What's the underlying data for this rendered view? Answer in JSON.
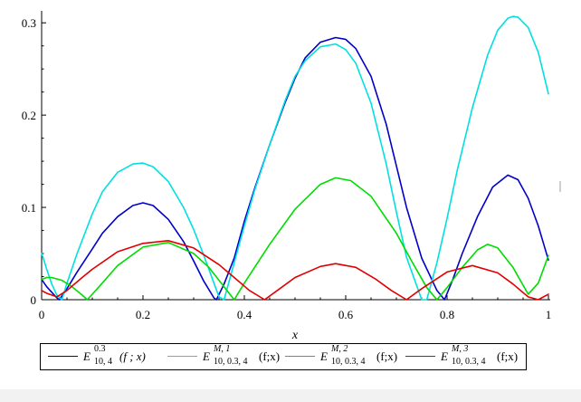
{
  "chart_data": {
    "type": "line",
    "title": "",
    "xlabel": "x",
    "ylabel": "",
    "xlim": [
      0,
      1
    ],
    "ylim": [
      0,
      0.31
    ],
    "x_ticks": [
      "0",
      "0.2",
      "0.4",
      "0.6",
      "0.8",
      "1"
    ],
    "y_ticks": [
      "0",
      "0.1",
      "0.2",
      "0.3"
    ],
    "grid": false,
    "legend_position": "bottom",
    "series": [
      {
        "color": "#0000c8",
        "legend": {
          "E": "E",
          "sup": "0.3",
          "sub": "10, 4",
          "arg": "(f ; x)"
        },
        "x": [
          0,
          0.005,
          0.01,
          0.02,
          0.03,
          0.035,
          0.05,
          0.07,
          0.1,
          0.12,
          0.15,
          0.18,
          0.2,
          0.22,
          0.25,
          0.28,
          0.3,
          0.32,
          0.34,
          0.345,
          0.36,
          0.38,
          0.4,
          0.42,
          0.45,
          0.48,
          0.5,
          0.52,
          0.55,
          0.58,
          0.6,
          0.62,
          0.65,
          0.68,
          0.7,
          0.72,
          0.75,
          0.78,
          0.795,
          0.81,
          0.83,
          0.86,
          0.89,
          0.92,
          0.94,
          0.96,
          0.98,
          1.0
        ],
        "y": [
          0.022,
          0.018,
          0.014,
          0.008,
          0.002,
          0.0,
          0.012,
          0.03,
          0.055,
          0.072,
          0.09,
          0.102,
          0.105,
          0.102,
          0.087,
          0.063,
          0.042,
          0.02,
          0.002,
          0.0,
          0.017,
          0.045,
          0.085,
          0.12,
          0.168,
          0.213,
          0.24,
          0.262,
          0.279,
          0.284,
          0.282,
          0.272,
          0.242,
          0.19,
          0.145,
          0.1,
          0.045,
          0.01,
          0.0,
          0.02,
          0.05,
          0.09,
          0.122,
          0.135,
          0.13,
          0.11,
          0.08,
          0.043
        ]
      },
      {
        "color": "#00e0e0",
        "legend": {
          "E": "E",
          "sup": "M, 1",
          "sub": "10, 0.3, 4",
          "arg": "(f;x)"
        },
        "x": [
          0,
          0.005,
          0.01,
          0.02,
          0.03,
          0.04,
          0.05,
          0.07,
          0.1,
          0.12,
          0.15,
          0.18,
          0.2,
          0.22,
          0.25,
          0.28,
          0.3,
          0.32,
          0.34,
          0.35,
          0.36,
          0.38,
          0.4,
          0.42,
          0.45,
          0.48,
          0.5,
          0.52,
          0.55,
          0.58,
          0.6,
          0.62,
          0.65,
          0.68,
          0.7,
          0.72,
          0.75,
          0.76,
          0.78,
          0.8,
          0.82,
          0.85,
          0.88,
          0.9,
          0.92,
          0.93,
          0.94,
          0.96,
          0.98,
          1.0
        ],
        "y": [
          0.05,
          0.042,
          0.033,
          0.017,
          0.005,
          0.0,
          0.018,
          0.05,
          0.093,
          0.117,
          0.138,
          0.147,
          0.148,
          0.144,
          0.128,
          0.1,
          0.076,
          0.048,
          0.018,
          0.003,
          0.0,
          0.04,
          0.08,
          0.118,
          0.168,
          0.215,
          0.242,
          0.259,
          0.274,
          0.277,
          0.271,
          0.256,
          0.213,
          0.147,
          0.095,
          0.046,
          0.0,
          0.0,
          0.04,
          0.088,
          0.14,
          0.208,
          0.265,
          0.292,
          0.305,
          0.307,
          0.306,
          0.295,
          0.268,
          0.223
        ]
      },
      {
        "color": "#00dc00",
        "legend": {
          "E": "E",
          "sup": "M, 2",
          "sub": "10, 0.3, 4",
          "arg": "(f;x)"
        },
        "x": [
          0,
          0.01,
          0.02,
          0.04,
          0.06,
          0.08,
          0.09,
          0.11,
          0.15,
          0.2,
          0.25,
          0.3,
          0.33,
          0.36,
          0.38,
          0.4,
          0.45,
          0.5,
          0.55,
          0.58,
          0.61,
          0.65,
          0.7,
          0.73,
          0.76,
          0.78,
          0.8,
          0.83,
          0.86,
          0.88,
          0.9,
          0.93,
          0.96,
          0.98,
          1.0
        ],
        "y": [
          0.022,
          0.024,
          0.024,
          0.021,
          0.014,
          0.005,
          0.0,
          0.012,
          0.037,
          0.057,
          0.062,
          0.05,
          0.035,
          0.014,
          0.0,
          0.018,
          0.06,
          0.098,
          0.125,
          0.132,
          0.129,
          0.112,
          0.072,
          0.042,
          0.013,
          0.0,
          0.013,
          0.035,
          0.054,
          0.06,
          0.056,
          0.035,
          0.006,
          0.018,
          0.048
        ]
      },
      {
        "color": "#e00000",
        "legend": {
          "E": "E",
          "sup": "M, 3",
          "sub": "10, 0.3, 4",
          "arg": "(f;x)"
        },
        "x": [
          0,
          0.01,
          0.03,
          0.05,
          0.08,
          0.1,
          0.15,
          0.2,
          0.25,
          0.3,
          0.35,
          0.38,
          0.41,
          0.44,
          0.47,
          0.5,
          0.55,
          0.58,
          0.62,
          0.66,
          0.69,
          0.72,
          0.75,
          0.8,
          0.85,
          0.9,
          0.93,
          0.96,
          0.98,
          1.0
        ],
        "y": [
          0.01,
          0.007,
          0.003,
          0.01,
          0.024,
          0.033,
          0.052,
          0.061,
          0.064,
          0.056,
          0.038,
          0.024,
          0.01,
          0.0,
          0.012,
          0.024,
          0.036,
          0.039,
          0.035,
          0.022,
          0.01,
          0.0,
          0.012,
          0.03,
          0.037,
          0.029,
          0.017,
          0.003,
          0.0,
          0.006
        ]
      }
    ]
  }
}
